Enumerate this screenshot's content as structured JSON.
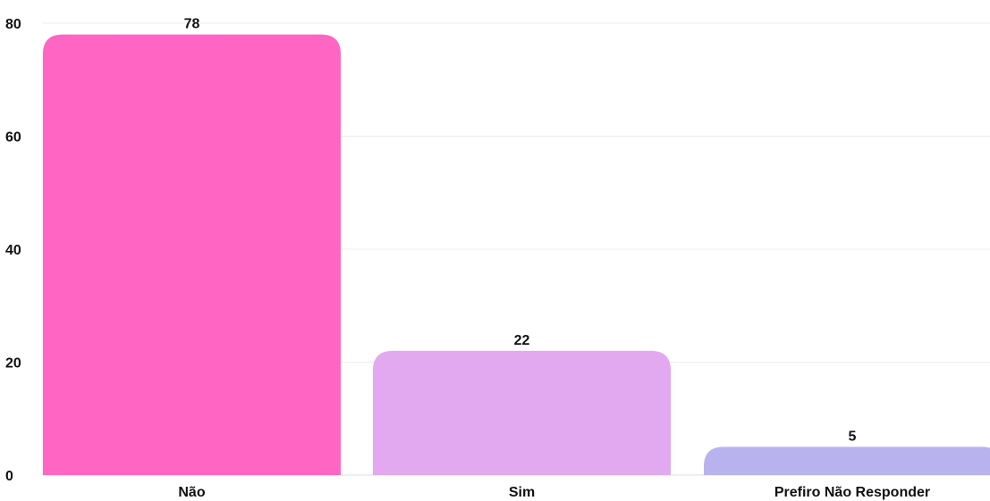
{
  "chart_data": {
    "type": "bar",
    "title": "",
    "xlabel": "",
    "ylabel": "",
    "categories": [
      "Não",
      "Sim",
      "Prefiro Não Responder"
    ],
    "values": [
      78,
      22,
      5
    ],
    "data_labels": [
      "78",
      "22",
      "5"
    ],
    "colors": [
      "#ff66c4",
      "#e2a9f1",
      "#b8b2ef"
    ],
    "ylim": [
      0,
      80
    ],
    "yticks": [
      0,
      20,
      40,
      60,
      80
    ],
    "ytick_labels": [
      "0",
      "20",
      "40",
      "60",
      "80"
    ],
    "grid": true,
    "legend": "none"
  }
}
